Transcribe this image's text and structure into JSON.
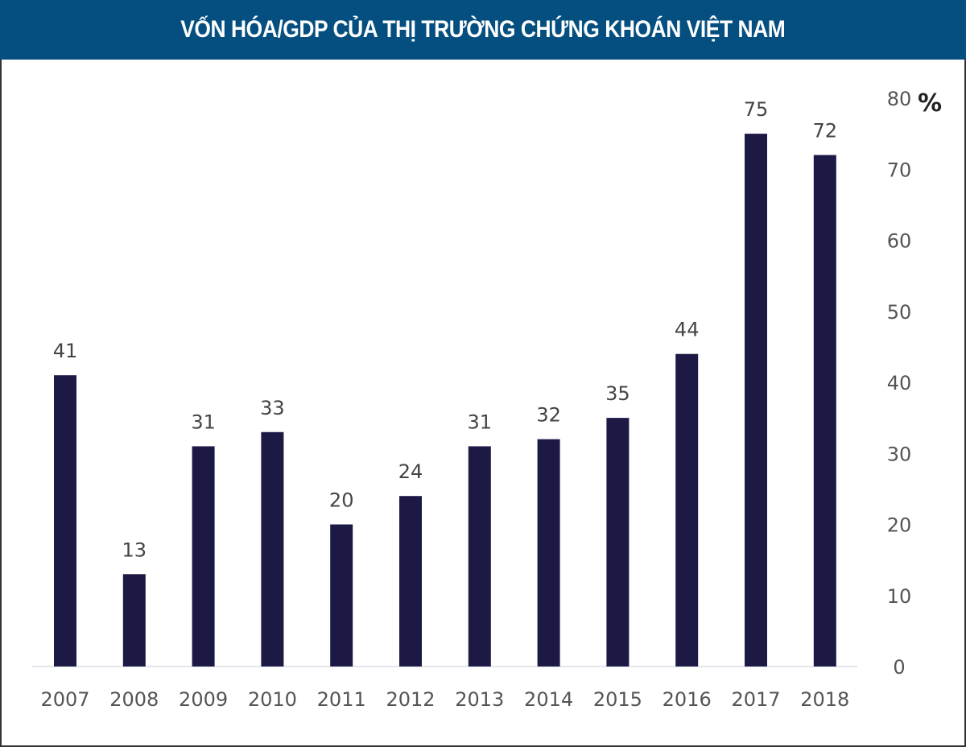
{
  "title": "VỐN HÓA/GDP CỦA THỊ TRƯỜNG CHỨNG KHOÁN VIỆT NAM",
  "chart_data": {
    "type": "bar",
    "title": "VỐN HÓA/GDP CỦA THỊ TRƯỜNG CHỨNG KHOÁN VIỆT NAM",
    "categories": [
      "2007",
      "2008",
      "2009",
      "2010",
      "2011",
      "2012",
      "2013",
      "2014",
      "2015",
      "2016",
      "2017",
      "2018"
    ],
    "values": [
      41,
      13,
      31,
      33,
      20,
      24,
      31,
      32,
      35,
      44,
      75,
      72
    ],
    "ylabel": "%",
    "ylim": [
      0,
      80
    ],
    "yticks": [
      0,
      10,
      20,
      30,
      40,
      50,
      60,
      70,
      80
    ],
    "y_axis_position": "right",
    "grid": false,
    "data_labels": true,
    "colors": {
      "bar": "#1c1a45",
      "title_bar": "#054f80"
    }
  }
}
